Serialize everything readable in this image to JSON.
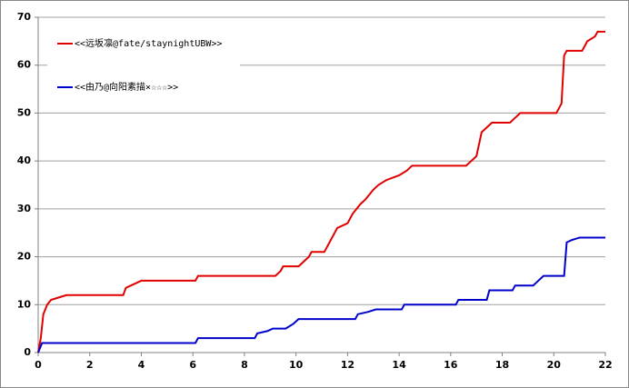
{
  "chart_data": {
    "type": "line",
    "xlim": [
      0,
      22
    ],
    "xticks": [
      0,
      2,
      4,
      6,
      8,
      10,
      12,
      14,
      16,
      18,
      20,
      22
    ],
    "ylim": [
      0,
      70
    ],
    "yticks": [
      0,
      10,
      20,
      30,
      40,
      50,
      60,
      70
    ],
    "grid": true,
    "legend": "top-left",
    "series": [
      {
        "name": "<<远坂凛@fate/staynightUBW>>",
        "color": "#e00000",
        "x": [
          0,
          0.1,
          0.2,
          0.35,
          0.5,
          0.8,
          1.1,
          3.3,
          3.4,
          3.6,
          4,
          6.1,
          6.2,
          9.2,
          9.4,
          9.5,
          10.1,
          10.3,
          10.5,
          10.6,
          11.1,
          11.3,
          11.6,
          12,
          12.2,
          12.5,
          12.7,
          13,
          13.2,
          13.5,
          14,
          14.3,
          14.5,
          16.6,
          17,
          17.2,
          17.4,
          17.6,
          18.3,
          18.5,
          18.7,
          20.1,
          20.3,
          20.4,
          20.5,
          21.1,
          21.3,
          21.6,
          21.7,
          22
        ],
        "values": [
          0,
          3,
          8,
          10,
          11,
          11.5,
          12,
          12,
          13.5,
          14,
          15,
          15,
          16,
          16,
          17,
          18,
          18,
          19,
          20,
          21,
          21,
          23,
          26,
          27,
          29,
          31,
          32,
          34,
          35,
          36,
          37,
          38,
          39,
          39,
          41,
          46,
          47,
          48,
          48,
          49,
          50,
          50,
          52,
          62,
          63,
          63,
          65,
          66,
          67,
          67
        ]
      },
      {
        "name": "<<由乃@向阳素描×☆☆☆>>",
        "color": "#0000cc",
        "x": [
          0,
          0.15,
          6.1,
          6.2,
          8.4,
          8.5,
          8.9,
          9.1,
          9.6,
          9.9,
          10.1,
          12.3,
          12.4,
          12.8,
          13.1,
          14.1,
          14.2,
          16.2,
          16.3,
          17.4,
          17.5,
          18.4,
          18.5,
          19.2,
          19.4,
          19.6,
          20.4,
          20.5,
          20.7,
          21,
          22
        ],
        "values": [
          0,
          2,
          2,
          3,
          3,
          4,
          4.5,
          5,
          5,
          6,
          7,
          7,
          8,
          8.5,
          9,
          9,
          10,
          10,
          11,
          11,
          13,
          13,
          14,
          14,
          15,
          16,
          16,
          23,
          23.5,
          24,
          24
        ]
      }
    ]
  }
}
